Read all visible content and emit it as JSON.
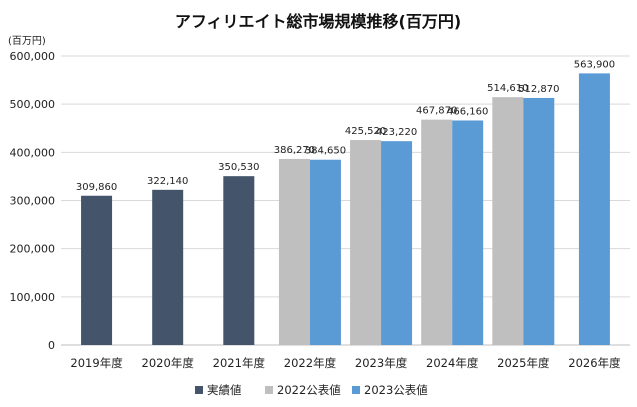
{
  "chart_data": {
    "type": "bar",
    "title": "アフィリエイト総市場規模推移(百万円)",
    "unit_label": "(百万円)",
    "categories": [
      "2019年度",
      "2020年度",
      "2021年度",
      "2022年度",
      "2023年度",
      "2024年度",
      "2025年度",
      "2026年度"
    ],
    "ylim": [
      0,
      600000
    ],
    "yticks": [
      0,
      100000,
      200000,
      300000,
      400000,
      500000,
      600000
    ],
    "ytick_labels": [
      "0",
      "100,000",
      "200,000",
      "300,000",
      "400,000",
      "500,000",
      "600,000"
    ],
    "grid": true,
    "legend_position": "bottom",
    "series": [
      {
        "name": "実績値",
        "color": "#44546A",
        "values": [
          309860,
          322140,
          350530,
          null,
          null,
          null,
          null,
          null
        ],
        "labels": [
          "309,860",
          "322,140",
          "350,530",
          "",
          "",
          "",
          "",
          ""
        ]
      },
      {
        "name": "2022公表値",
        "color": "#BFBFBF",
        "values": [
          null,
          null,
          null,
          386270,
          425520,
          467870,
          514610,
          null
        ],
        "labels": [
          "",
          "",
          "",
          "386,270",
          "425,520",
          "467,870",
          "514,610",
          ""
        ]
      },
      {
        "name": "2023公表値",
        "color": "#5B9BD5",
        "values": [
          null,
          null,
          null,
          384650,
          423220,
          466160,
          512870,
          563900
        ],
        "labels": [
          "",
          "",
          "",
          "384,650",
          "423,220",
          "466,160",
          "512,870",
          "563,900"
        ]
      }
    ]
  }
}
